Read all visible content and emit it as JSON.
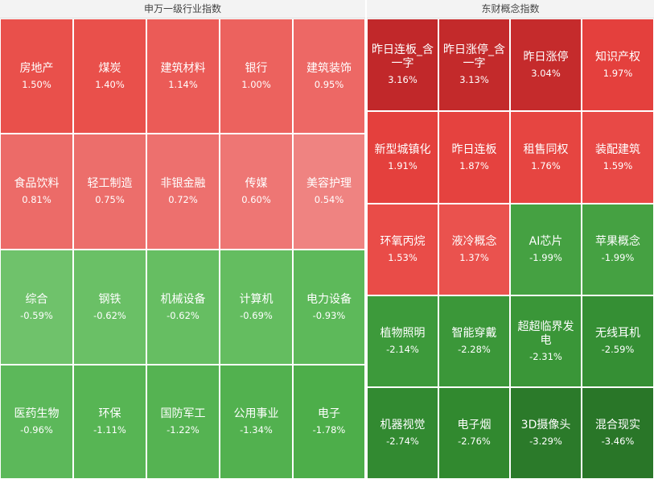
{
  "panels": [
    {
      "title": "申万一级行业指数",
      "tiles": [
        {
          "name": "房地产",
          "value": "1.50%",
          "color": "#e9504b"
        },
        {
          "name": "煤炭",
          "value": "1.40%",
          "color": "#e9504b"
        },
        {
          "name": "建筑材料",
          "value": "1.14%",
          "color": "#eb5b57"
        },
        {
          "name": "银行",
          "value": "1.00%",
          "color": "#ec625e"
        },
        {
          "name": "建筑装饰",
          "value": "0.95%",
          "color": "#ed6865"
        },
        {
          "name": "食品饮料",
          "value": "0.81%",
          "color": "#ec6b68"
        },
        {
          "name": "轻工制造",
          "value": "0.75%",
          "color": "#ec6e6b"
        },
        {
          "name": "非银金融",
          "value": "0.72%",
          "color": "#ed706e"
        },
        {
          "name": "传媒",
          "value": "0.60%",
          "color": "#ee7674"
        },
        {
          "name": "美容护理",
          "value": "0.54%",
          "color": "#ef8381"
        },
        {
          "name": "综合",
          "value": "-0.59%",
          "color": "#6fc26b"
        },
        {
          "name": "钢铁",
          "value": "-0.62%",
          "color": "#6ac066"
        },
        {
          "name": "机械设备",
          "value": "-0.62%",
          "color": "#66be62"
        },
        {
          "name": "计算机",
          "value": "-0.69%",
          "color": "#64bd60"
        },
        {
          "name": "电力设备",
          "value": "-0.93%",
          "color": "#5db95a"
        },
        {
          "name": "医药生物",
          "value": "-0.96%",
          "color": "#5cb85a"
        },
        {
          "name": "环保",
          "value": "-1.11%",
          "color": "#57b554"
        },
        {
          "name": "国防军工",
          "value": "-1.22%",
          "color": "#55b352"
        },
        {
          "name": "公用事业",
          "value": "-1.34%",
          "color": "#52b14f"
        },
        {
          "name": "电子",
          "value": "-1.78%",
          "color": "#4dae4a"
        }
      ]
    },
    {
      "title": "东财概念指数",
      "tiles": [
        {
          "name": "昨日连板_含一字",
          "value": "3.16%",
          "color": "#c1282a"
        },
        {
          "name": "昨日涨停_含一字",
          "value": "3.13%",
          "color": "#c32a2b"
        },
        {
          "name": "昨日涨停",
          "value": "3.04%",
          "color": "#c52b2c"
        },
        {
          "name": "知识产权",
          "value": "1.97%",
          "color": "#e4403d"
        },
        {
          "name": "新型城镇化",
          "value": "1.91%",
          "color": "#e4403d"
        },
        {
          "name": "昨日连板",
          "value": "1.87%",
          "color": "#e5423f"
        },
        {
          "name": "租售同权",
          "value": "1.76%",
          "color": "#e64541"
        },
        {
          "name": "装配建筑",
          "value": "1.59%",
          "color": "#e84946"
        },
        {
          "name": "环氧丙烷",
          "value": "1.53%",
          "color": "#e94c48"
        },
        {
          "name": "液冷概念",
          "value": "1.37%",
          "color": "#ea524e"
        },
        {
          "name": "AI芯片",
          "value": "-1.99%",
          "color": "#45a142"
        },
        {
          "name": "苹果概念",
          "value": "-1.99%",
          "color": "#45a142"
        },
        {
          "name": "植物照明",
          "value": "-2.14%",
          "color": "#3d9a3b"
        },
        {
          "name": "智能穿戴",
          "value": "-2.28%",
          "color": "#3b9739"
        },
        {
          "name": "超超临界发电",
          "value": "-2.31%",
          "color": "#3a9638"
        },
        {
          "name": "无线耳机",
          "value": "-2.59%",
          "color": "#358f34"
        },
        {
          "name": "机器视觉",
          "value": "-2.74%",
          "color": "#328a31"
        },
        {
          "name": "电子烟",
          "value": "-2.76%",
          "color": "#31892f"
        },
        {
          "name": "3D摄像头",
          "value": "-3.29%",
          "color": "#2b7a2a"
        },
        {
          "name": "混合现实",
          "value": "-3.46%",
          "color": "#297628"
        }
      ]
    }
  ]
}
